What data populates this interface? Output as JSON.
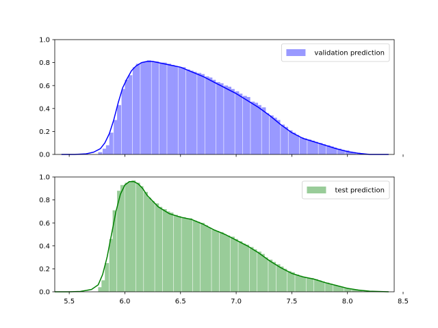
{
  "chart_data": [
    {
      "type": "area",
      "series_name": "validation prediction",
      "color": "#0000ff",
      "fill_color": "#9999ff",
      "legend_position": "upper right",
      "xlim": [
        5.37,
        8.42
      ],
      "ylim": [
        0,
        1.0
      ],
      "x_ticks": [
        5.5,
        6.0,
        6.5,
        7.0,
        7.5,
        8.0,
        8.5
      ],
      "x_tick_labels_visible": false,
      "y_ticks": [
        0.0,
        0.2,
        0.4,
        0.6,
        0.8,
        1.0
      ],
      "y_tick_labels": [
        "0.0",
        "0.2",
        "0.4",
        "0.6",
        "0.8",
        "1.0"
      ],
      "kde": {
        "x": [
          5.43,
          5.55,
          5.65,
          5.72,
          5.78,
          5.82,
          5.86,
          5.9,
          5.94,
          5.98,
          6.02,
          6.06,
          6.1,
          6.15,
          6.2,
          6.25,
          6.3,
          6.4,
          6.5,
          6.6,
          6.7,
          6.8,
          6.9,
          7.0,
          7.1,
          7.2,
          7.3,
          7.4,
          7.5,
          7.6,
          7.7,
          7.8,
          7.9,
          8.0,
          8.1,
          8.2,
          8.37
        ],
        "density": [
          0.0,
          0.0,
          0.005,
          0.02,
          0.05,
          0.1,
          0.18,
          0.3,
          0.45,
          0.58,
          0.66,
          0.73,
          0.77,
          0.8,
          0.81,
          0.81,
          0.8,
          0.78,
          0.76,
          0.72,
          0.68,
          0.63,
          0.58,
          0.53,
          0.47,
          0.41,
          0.34,
          0.26,
          0.19,
          0.14,
          0.11,
          0.08,
          0.05,
          0.025,
          0.01,
          0.0,
          0.0
        ]
      },
      "histogram": {
        "bin_width": 0.034,
        "bins": [
          [
            5.76,
            0.02
          ],
          [
            5.8,
            0.05
          ],
          [
            5.83,
            0.08
          ],
          [
            5.86,
            0.19
          ],
          [
            5.9,
            0.3
          ],
          [
            5.93,
            0.43
          ],
          [
            5.97,
            0.57
          ],
          [
            6.0,
            0.65
          ],
          [
            6.03,
            0.69
          ],
          [
            6.07,
            0.76
          ],
          [
            6.1,
            0.79
          ],
          [
            6.14,
            0.8
          ],
          [
            6.17,
            0.81
          ],
          [
            6.2,
            0.82
          ],
          [
            6.24,
            0.81
          ],
          [
            6.27,
            0.81
          ],
          [
            6.31,
            0.8
          ],
          [
            6.34,
            0.8
          ],
          [
            6.38,
            0.79
          ],
          [
            6.41,
            0.78
          ],
          [
            6.44,
            0.77
          ],
          [
            6.48,
            0.76
          ],
          [
            6.51,
            0.76
          ],
          [
            6.55,
            0.74
          ],
          [
            6.58,
            0.73
          ],
          [
            6.61,
            0.72
          ],
          [
            6.65,
            0.71
          ],
          [
            6.68,
            0.7
          ],
          [
            6.72,
            0.68
          ],
          [
            6.75,
            0.67
          ],
          [
            6.78,
            0.65
          ],
          [
            6.82,
            0.63
          ],
          [
            6.85,
            0.62
          ],
          [
            6.89,
            0.6
          ],
          [
            6.92,
            0.59
          ],
          [
            6.95,
            0.57
          ],
          [
            6.99,
            0.55
          ],
          [
            7.02,
            0.53
          ],
          [
            7.06,
            0.51
          ],
          [
            7.09,
            0.5
          ],
          [
            7.13,
            0.46
          ],
          [
            7.16,
            0.45
          ],
          [
            7.19,
            0.43
          ],
          [
            7.23,
            0.41
          ],
          [
            7.26,
            0.36
          ],
          [
            7.3,
            0.34
          ],
          [
            7.33,
            0.32
          ],
          [
            7.36,
            0.3
          ],
          [
            7.4,
            0.26
          ],
          [
            7.43,
            0.24
          ],
          [
            7.47,
            0.21
          ],
          [
            7.5,
            0.19
          ],
          [
            7.53,
            0.17
          ],
          [
            7.57,
            0.15
          ],
          [
            7.6,
            0.14
          ],
          [
            7.64,
            0.13
          ],
          [
            7.67,
            0.12
          ],
          [
            7.7,
            0.11
          ],
          [
            7.74,
            0.1
          ],
          [
            7.77,
            0.09
          ],
          [
            7.81,
            0.08
          ],
          [
            7.84,
            0.07
          ],
          [
            7.87,
            0.06
          ],
          [
            7.91,
            0.05
          ],
          [
            7.94,
            0.04
          ],
          [
            7.98,
            0.035
          ],
          [
            8.01,
            0.025
          ],
          [
            8.04,
            0.02
          ],
          [
            8.08,
            0.015
          ],
          [
            8.11,
            0.01
          ],
          [
            8.15,
            0.006
          ],
          [
            8.18,
            0.003
          ]
        ]
      }
    },
    {
      "type": "area",
      "series_name": "test prediction",
      "color": "#008000",
      "fill_color": "#99cc99",
      "legend_position": "upper right",
      "xlim": [
        5.37,
        8.42
      ],
      "ylim": [
        0,
        1.0
      ],
      "x_ticks": [
        5.5,
        6.0,
        6.5,
        7.0,
        7.5,
        8.0,
        8.5
      ],
      "x_tick_labels": [
        "5.5",
        "6.0",
        "6.5",
        "7.0",
        "7.5",
        "8.0",
        "8.5"
      ],
      "x_tick_labels_visible": true,
      "y_ticks": [
        0.0,
        0.2,
        0.4,
        0.6,
        0.8,
        1.0
      ],
      "y_tick_labels": [
        "0.0",
        "0.2",
        "0.4",
        "0.6",
        "0.8",
        "1.0"
      ],
      "kde": {
        "x": [
          5.37,
          5.5,
          5.6,
          5.7,
          5.76,
          5.8,
          5.84,
          5.88,
          5.92,
          5.96,
          6.0,
          6.04,
          6.08,
          6.12,
          6.16,
          6.2,
          6.3,
          6.4,
          6.5,
          6.6,
          6.7,
          6.8,
          6.9,
          7.0,
          7.1,
          7.2,
          7.3,
          7.4,
          7.5,
          7.6,
          7.7,
          7.8,
          7.9,
          8.0,
          8.1,
          8.2,
          8.37
        ],
        "density": [
          0.0,
          0.0,
          0.003,
          0.02,
          0.06,
          0.15,
          0.3,
          0.5,
          0.7,
          0.85,
          0.93,
          0.96,
          0.96,
          0.94,
          0.9,
          0.84,
          0.74,
          0.68,
          0.65,
          0.63,
          0.59,
          0.54,
          0.5,
          0.45,
          0.4,
          0.34,
          0.27,
          0.21,
          0.16,
          0.13,
          0.11,
          0.08,
          0.055,
          0.03,
          0.015,
          0.005,
          0.0
        ]
      },
      "histogram": {
        "bin_width": 0.034,
        "bins": [
          [
            5.76,
            0.04
          ],
          [
            5.79,
            0.1
          ],
          [
            5.82,
            0.25
          ],
          [
            5.86,
            0.46
          ],
          [
            5.89,
            0.71
          ],
          [
            5.93,
            0.88
          ],
          [
            5.96,
            0.93
          ],
          [
            6.0,
            0.95
          ],
          [
            6.03,
            0.96
          ],
          [
            6.06,
            0.97
          ],
          [
            6.1,
            0.95
          ],
          [
            6.13,
            0.92
          ],
          [
            6.17,
            0.87
          ],
          [
            6.2,
            0.82
          ],
          [
            6.23,
            0.79
          ],
          [
            6.27,
            0.77
          ],
          [
            6.3,
            0.74
          ],
          [
            6.34,
            0.72
          ],
          [
            6.37,
            0.7
          ],
          [
            6.4,
            0.69
          ],
          [
            6.44,
            0.67
          ],
          [
            6.47,
            0.66
          ],
          [
            6.51,
            0.65
          ],
          [
            6.54,
            0.64
          ],
          [
            6.57,
            0.64
          ],
          [
            6.61,
            0.62
          ],
          [
            6.64,
            0.61
          ],
          [
            6.68,
            0.6
          ],
          [
            6.71,
            0.58
          ],
          [
            6.74,
            0.56
          ],
          [
            6.78,
            0.54
          ],
          [
            6.81,
            0.53
          ],
          [
            6.85,
            0.52
          ],
          [
            6.88,
            0.5
          ],
          [
            6.91,
            0.49
          ],
          [
            6.95,
            0.48
          ],
          [
            6.98,
            0.46
          ],
          [
            7.02,
            0.44
          ],
          [
            7.05,
            0.42
          ],
          [
            7.08,
            0.41
          ],
          [
            7.12,
            0.39
          ],
          [
            7.15,
            0.37
          ],
          [
            7.19,
            0.35
          ],
          [
            7.22,
            0.33
          ],
          [
            7.25,
            0.3
          ],
          [
            7.29,
            0.28
          ],
          [
            7.32,
            0.26
          ],
          [
            7.36,
            0.24
          ],
          [
            7.39,
            0.22
          ],
          [
            7.42,
            0.2
          ],
          [
            7.46,
            0.18
          ],
          [
            7.49,
            0.17
          ],
          [
            7.53,
            0.15
          ],
          [
            7.56,
            0.14
          ],
          [
            7.59,
            0.13
          ],
          [
            7.63,
            0.12
          ],
          [
            7.66,
            0.12
          ],
          [
            7.7,
            0.11
          ],
          [
            7.73,
            0.1
          ],
          [
            7.76,
            0.09
          ],
          [
            7.8,
            0.08
          ],
          [
            7.83,
            0.07
          ],
          [
            7.87,
            0.06
          ],
          [
            7.9,
            0.05
          ],
          [
            7.93,
            0.045
          ],
          [
            7.97,
            0.035
          ],
          [
            8.0,
            0.03
          ],
          [
            8.04,
            0.02
          ],
          [
            8.07,
            0.015
          ],
          [
            8.1,
            0.01
          ],
          [
            8.14,
            0.006
          ],
          [
            8.17,
            0.003
          ]
        ]
      }
    }
  ]
}
